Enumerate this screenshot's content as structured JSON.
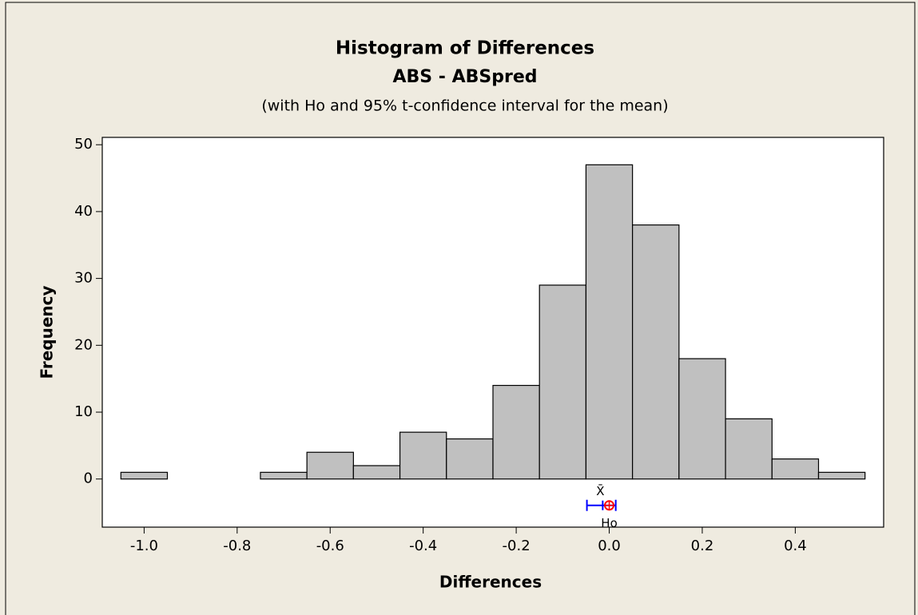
{
  "chart_data": {
    "type": "histogram",
    "title": "Histogram of Differences",
    "subtitle": "ABS - ABSpred",
    "note": "(with Ho and 95% t-confidence interval for the mean)",
    "x_label": "Differences",
    "y_label": "Frequency",
    "bins": [
      -1.05,
      -0.95,
      -0.85,
      -0.75,
      -0.65,
      -0.55,
      -0.45,
      -0.35,
      -0.25,
      -0.15,
      -0.05,
      0.05,
      0.15,
      0.25,
      0.35,
      0.45,
      0.55
    ],
    "counts": [
      1,
      0,
      0,
      1,
      4,
      2,
      7,
      6,
      14,
      29,
      47,
      38,
      18,
      9,
      3,
      1
    ],
    "color": "#c0c0c0",
    "xlim": [
      -1.09,
      0.59
    ],
    "ylim": [
      -7.2,
      51.1
    ],
    "xticks": [
      {
        "value": -1,
        "label": "-1.0"
      },
      -0.8,
      -0.6,
      -0.4,
      -0.2,
      {
        "value": 0,
        "label": "0.0"
      },
      0.2,
      0.4
    ],
    "yticks": [
      0,
      10,
      20,
      30,
      40,
      50
    ],
    "interval": {
      "mean": -0.014,
      "lower": -0.048,
      "upper": 0.014,
      "ho": 0,
      "mean_label": "X̄",
      "ho_label": "Ho",
      "color": "#0000ff",
      "ho_color": "#ff0000"
    }
  }
}
